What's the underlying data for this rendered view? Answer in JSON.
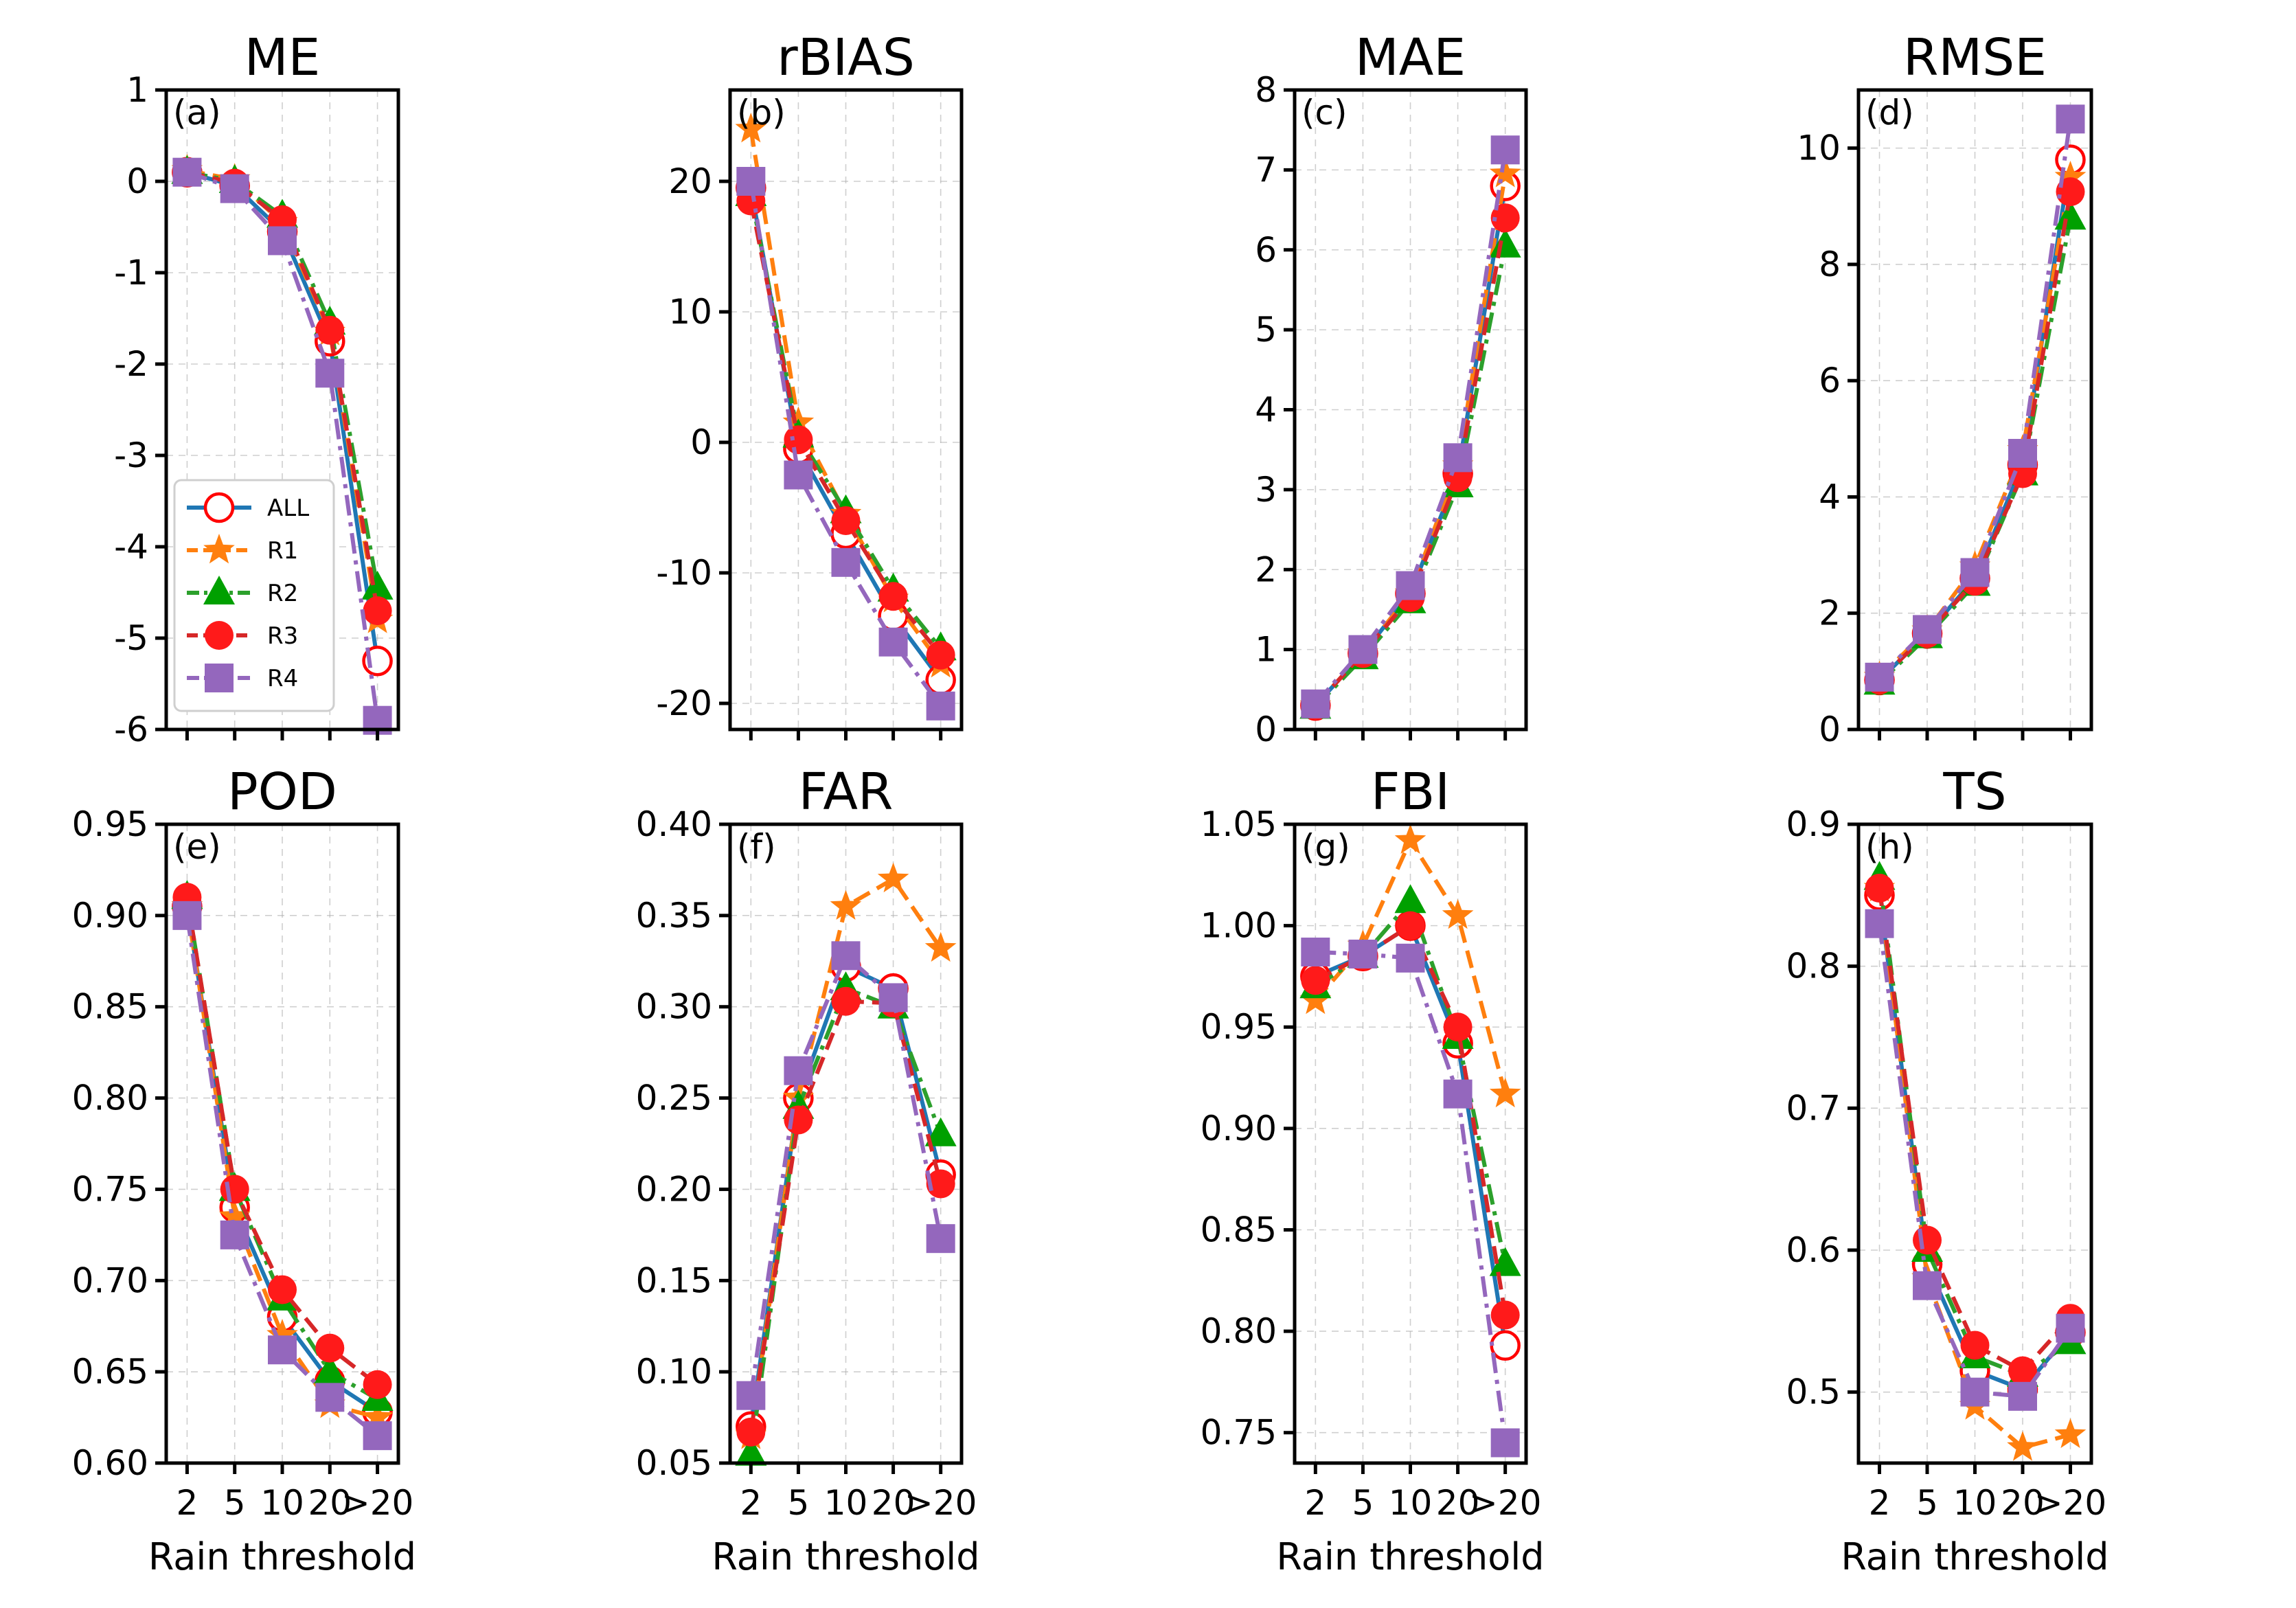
{
  "figure": {
    "xlabel": "Rain threshold",
    "categories": [
      "2",
      "5",
      "10",
      "20",
      ">20"
    ],
    "series_styles": [
      {
        "name": "ALL",
        "color": "#1f77b4",
        "marker": "open-circle",
        "marker_color": "#ff0000",
        "dash": "solid"
      },
      {
        "name": "R1",
        "color": "#ff7f0e",
        "marker": "star",
        "marker_color": "#ff7f0e",
        "dash": "dashed"
      },
      {
        "name": "R2",
        "color": "#2ca02c",
        "marker": "triangle",
        "marker_color": "#00a000",
        "dash": "dashdot"
      },
      {
        "name": "R3",
        "color": "#d62728",
        "marker": "filled-circle",
        "marker_color": "#ff1a1a",
        "dash": "dashed"
      },
      {
        "name": "R4",
        "color": "#9467bd",
        "marker": "square",
        "marker_color": "#9467bd",
        "dash": "dashdot"
      }
    ],
    "legend": {
      "panel": "a",
      "placement": "lower-left",
      "entries": [
        "ALL",
        "R1",
        "R2",
        "R3",
        "R4"
      ]
    }
  },
  "chart_data": [
    {
      "type": "line",
      "panel": "(a)",
      "title": "ME",
      "xlabel": "",
      "categories": [
        "2",
        "5",
        "10",
        "20",
        ">20"
      ],
      "ylim": [
        -6,
        1
      ],
      "yticks": [
        1,
        0,
        -1,
        -2,
        -3,
        -4,
        -5,
        -6
      ],
      "ytick_labels": [
        "1",
        "0",
        "-1",
        "-2",
        "-3",
        "-4",
        "-5",
        "-6"
      ],
      "series": [
        {
          "name": "ALL",
          "values": [
            0.1,
            -0.05,
            -0.55,
            -1.75,
            -5.25
          ]
        },
        {
          "name": "R1",
          "values": [
            0.12,
            0.02,
            -0.45,
            -1.65,
            -4.8
          ]
        },
        {
          "name": "R2",
          "values": [
            0.1,
            0.0,
            -0.38,
            -1.55,
            -4.45
          ]
        },
        {
          "name": "R3",
          "values": [
            0.1,
            -0.02,
            -0.42,
            -1.63,
            -4.7
          ]
        },
        {
          "name": "R4",
          "values": [
            0.1,
            -0.08,
            -0.65,
            -2.1,
            -5.9
          ]
        }
      ]
    },
    {
      "type": "line",
      "panel": "(b)",
      "title": "rBIAS",
      "xlabel": "",
      "categories": [
        "2",
        "5",
        "10",
        "20",
        ">20"
      ],
      "ylim": [
        -22,
        27
      ],
      "yticks": [
        20,
        10,
        0,
        -10,
        -20
      ],
      "ytick_labels": [
        "20",
        "10",
        "0",
        "-10",
        "-20"
      ],
      "series": [
        {
          "name": "ALL",
          "values": [
            19.5,
            -0.5,
            -7.0,
            -13.3,
            -18.2
          ]
        },
        {
          "name": "R1",
          "values": [
            24.0,
            1.5,
            -5.5,
            -12.0,
            -17.0
          ]
        },
        {
          "name": "R2",
          "values": [
            19.0,
            0.5,
            -5.3,
            -11.3,
            -15.8
          ]
        },
        {
          "name": "R3",
          "values": [
            18.5,
            0.2,
            -6.0,
            -11.8,
            -16.3
          ]
        },
        {
          "name": "R4",
          "values": [
            20.0,
            -2.5,
            -9.2,
            -15.3,
            -20.2
          ]
        }
      ]
    },
    {
      "type": "line",
      "panel": "(c)",
      "title": "MAE",
      "xlabel": "",
      "categories": [
        "2",
        "5",
        "10",
        "20",
        ">20"
      ],
      "ylim": [
        0,
        8
      ],
      "yticks": [
        0,
        1,
        2,
        3,
        4,
        5,
        6,
        7,
        8
      ],
      "ytick_labels": [
        "0",
        "1",
        "2",
        "3",
        "4",
        "5",
        "6",
        "7",
        "8"
      ],
      "series": [
        {
          "name": "ALL",
          "values": [
            0.3,
            0.95,
            1.7,
            3.2,
            6.8
          ]
        },
        {
          "name": "R1",
          "values": [
            0.3,
            0.95,
            1.7,
            3.3,
            6.95
          ]
        },
        {
          "name": "R2",
          "values": [
            0.28,
            0.9,
            1.6,
            3.05,
            6.05
          ]
        },
        {
          "name": "R3",
          "values": [
            0.3,
            0.95,
            1.65,
            3.15,
            6.4
          ]
        },
        {
          "name": "R4",
          "values": [
            0.32,
            1.0,
            1.8,
            3.4,
            7.25
          ]
        }
      ]
    },
    {
      "type": "line",
      "panel": "(d)",
      "title": "RMSE",
      "xlabel": "",
      "categories": [
        "2",
        "5",
        "10",
        "20",
        ">20"
      ],
      "ylim": [
        0,
        11
      ],
      "yticks": [
        0,
        2,
        4,
        6,
        8,
        10
      ],
      "ytick_labels": [
        "0",
        "2",
        "4",
        "6",
        "8",
        "10"
      ],
      "series": [
        {
          "name": "ALL",
          "values": [
            0.85,
            1.65,
            2.6,
            4.55,
            9.8
          ]
        },
        {
          "name": "R1",
          "values": [
            0.9,
            1.7,
            2.8,
            4.8,
            9.5
          ]
        },
        {
          "name": "R2",
          "values": [
            0.8,
            1.6,
            2.5,
            4.4,
            8.8
          ]
        },
        {
          "name": "R3",
          "values": [
            0.85,
            1.65,
            2.55,
            4.4,
            9.25
          ]
        },
        {
          "name": "R4",
          "values": [
            0.9,
            1.72,
            2.7,
            4.75,
            10.5
          ]
        }
      ]
    },
    {
      "type": "line",
      "panel": "(e)",
      "title": "POD",
      "xlabel": "Rain threshold",
      "categories": [
        "2",
        "5",
        "10",
        "20",
        ">20"
      ],
      "ylim": [
        0.6,
        0.95
      ],
      "yticks": [
        0.6,
        0.65,
        0.7,
        0.75,
        0.8,
        0.85,
        0.9,
        0.95
      ],
      "ytick_labels": [
        "0.60",
        "0.65",
        "0.70",
        "0.75",
        "0.80",
        "0.85",
        "0.90",
        "0.95"
      ],
      "series": [
        {
          "name": "ALL",
          "values": [
            0.905,
            0.74,
            0.68,
            0.645,
            0.628
          ]
        },
        {
          "name": "R1",
          "values": [
            0.905,
            0.735,
            0.67,
            0.632,
            0.625
          ]
        },
        {
          "name": "R2",
          "values": [
            0.91,
            0.75,
            0.69,
            0.65,
            0.635
          ]
        },
        {
          "name": "R3",
          "values": [
            0.91,
            0.75,
            0.695,
            0.663,
            0.643
          ]
        },
        {
          "name": "R4",
          "values": [
            0.9,
            0.725,
            0.662,
            0.636,
            0.615
          ]
        }
      ]
    },
    {
      "type": "line",
      "panel": "(f)",
      "title": "FAR",
      "xlabel": "Rain threshold",
      "categories": [
        "2",
        "5",
        "10",
        "20",
        ">20"
      ],
      "ylim": [
        0.05,
        0.4
      ],
      "yticks": [
        0.05,
        0.1,
        0.15,
        0.2,
        0.25,
        0.3,
        0.35,
        0.4
      ],
      "ytick_labels": [
        "0.05",
        "0.10",
        "0.15",
        "0.20",
        "0.25",
        "0.30",
        "0.35",
        "0.40"
      ],
      "series": [
        {
          "name": "ALL",
          "values": [
            0.07,
            0.25,
            0.322,
            0.31,
            0.208
          ]
        },
        {
          "name": "R1",
          "values": [
            0.065,
            0.25,
            0.355,
            0.37,
            0.332
          ]
        },
        {
          "name": "R2",
          "values": [
            0.055,
            0.245,
            0.31,
            0.3,
            0.23
          ]
        },
        {
          "name": "R3",
          "values": [
            0.067,
            0.238,
            0.303,
            0.302,
            0.203
          ]
        },
        {
          "name": "R4",
          "values": [
            0.087,
            0.265,
            0.328,
            0.305,
            0.173
          ]
        }
      ]
    },
    {
      "type": "line",
      "panel": "(g)",
      "title": "FBI",
      "xlabel": "Rain threshold",
      "categories": [
        "2",
        "5",
        "10",
        "20",
        ">20"
      ],
      "ylim": [
        0.735,
        1.05
      ],
      "yticks": [
        0.75,
        0.8,
        0.85,
        0.9,
        0.95,
        1.0,
        1.05
      ],
      "ytick_labels": [
        "0.75",
        "0.80",
        "0.85",
        "0.90",
        "0.95",
        "1.00",
        "1.05"
      ],
      "series": [
        {
          "name": "ALL",
          "values": [
            0.975,
            0.985,
            1.0,
            0.942,
            0.793
          ]
        },
        {
          "name": "R1",
          "values": [
            0.963,
            0.99,
            1.042,
            1.005,
            0.917
          ]
        },
        {
          "name": "R2",
          "values": [
            0.97,
            0.985,
            1.012,
            0.945,
            0.833
          ]
        },
        {
          "name": "R3",
          "values": [
            0.973,
            0.985,
            1.0,
            0.95,
            0.808
          ]
        },
        {
          "name": "R4",
          "values": [
            0.987,
            0.986,
            0.984,
            0.917,
            0.745
          ]
        }
      ]
    },
    {
      "type": "line",
      "panel": "(h)",
      "title": "TS",
      "xlabel": "Rain threshold",
      "categories": [
        "2",
        "5",
        "10",
        "20",
        ">20"
      ],
      "ylim": [
        0.45,
        0.9
      ],
      "yticks": [
        0.5,
        0.6,
        0.7,
        0.8,
        0.9
      ],
      "ytick_labels": [
        "0.5",
        "0.6",
        "0.7",
        "0.8",
        "0.9"
      ],
      "series": [
        {
          "name": "ALL",
          "values": [
            0.85,
            0.59,
            0.515,
            0.502,
            0.542
          ]
        },
        {
          "name": "R1",
          "values": [
            0.855,
            0.58,
            0.49,
            0.461,
            0.47
          ]
        },
        {
          "name": "R2",
          "values": [
            0.862,
            0.6,
            0.525,
            0.512,
            0.535
          ]
        },
        {
          "name": "R3",
          "values": [
            0.855,
            0.607,
            0.533,
            0.515,
            0.552
          ]
        },
        {
          "name": "R4",
          "values": [
            0.83,
            0.575,
            0.5,
            0.497,
            0.545
          ]
        }
      ]
    }
  ]
}
